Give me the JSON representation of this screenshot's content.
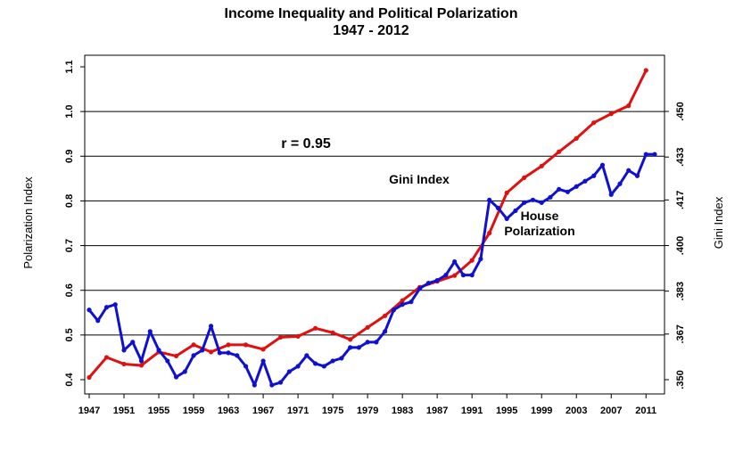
{
  "chart_data": {
    "type": "line",
    "title": "Income Inequality and Political Polarization",
    "subtitle": "1947 - 2012",
    "ylabel": "Polarization Index",
    "y2label": "Gini Index",
    "ylim": [
      0.4,
      1.1
    ],
    "y2lim": [
      0.35,
      0.45
    ],
    "xlim": [
      1947,
      2012
    ],
    "y_ticks": [
      "0.4",
      "0.5",
      "0.6",
      "0.7",
      "0.8",
      "0.9",
      "1.0",
      "1.1"
    ],
    "y2_ticks": [
      ".350",
      ".367",
      ".383",
      ".400",
      ".417",
      ".433",
      ".450"
    ],
    "x_ticks": [
      "1947",
      "1951",
      "1955",
      "1959",
      "1963",
      "1967",
      "1971",
      "1975",
      "1979",
      "1983",
      "1987",
      "1991",
      "1995",
      "1999",
      "2003",
      "2007",
      "2011"
    ],
    "gridlines": "horizontal",
    "annotations": [
      {
        "text": "r = 0.95",
        "color": "#000000"
      },
      {
        "text": "Gini Index",
        "color": "#1010d0"
      },
      {
        "text": "House",
        "color": "#e01010"
      },
      {
        "text": "Polarization",
        "color": "#e01010"
      }
    ],
    "series": [
      {
        "name": "House Polarization",
        "axis": "left",
        "color": "#e01010",
        "x": [
          1947,
          1949,
          1951,
          1953,
          1955,
          1957,
          1959,
          1961,
          1963,
          1965,
          1967,
          1969,
          1971,
          1973,
          1975,
          1977,
          1979,
          1981,
          1983,
          1985,
          1987,
          1989,
          1991,
          1993,
          1995,
          1997,
          1999,
          2001,
          2003,
          2005,
          2007,
          2009,
          2011
        ],
        "values": [
          0.405,
          0.45,
          0.435,
          0.432,
          0.462,
          0.453,
          0.478,
          0.462,
          0.478,
          0.478,
          0.468,
          0.495,
          0.497,
          0.515,
          0.505,
          0.49,
          0.517,
          0.543,
          0.577,
          0.607,
          0.62,
          0.633,
          0.667,
          0.728,
          0.818,
          0.852,
          0.878,
          0.91,
          0.94,
          0.975,
          0.995,
          1.013,
          1.092
        ]
      },
      {
        "name": "Gini Index",
        "axis": "right",
        "color": "#1010d0",
        "x": [
          1947,
          1948,
          1949,
          1950,
          1951,
          1952,
          1953,
          1954,
          1955,
          1956,
          1957,
          1958,
          1959,
          1960,
          1961,
          1962,
          1963,
          1964,
          1965,
          1966,
          1967,
          1968,
          1969,
          1970,
          1971,
          1972,
          1973,
          1974,
          1975,
          1976,
          1977,
          1978,
          1979,
          1980,
          1981,
          1982,
          1983,
          1984,
          1985,
          1986,
          1987,
          1988,
          1989,
          1990,
          1991,
          1992,
          1993,
          1994,
          1995,
          1996,
          1997,
          1998,
          1999,
          2000,
          2001,
          2002,
          2003,
          2004,
          2005,
          2006,
          2007,
          2008,
          2009,
          2010,
          2011,
          2012
        ],
        "values": [
          0.376,
          0.372,
          0.377,
          0.378,
          0.361,
          0.364,
          0.357,
          0.368,
          0.361,
          0.357,
          0.351,
          0.353,
          0.359,
          0.361,
          0.37,
          0.36,
          0.36,
          0.359,
          0.355,
          0.348,
          0.357,
          0.348,
          0.349,
          0.353,
          0.355,
          0.359,
          0.356,
          0.355,
          0.357,
          0.358,
          0.362,
          0.362,
          0.364,
          0.364,
          0.368,
          0.376,
          0.378,
          0.379,
          0.384,
          0.386,
          0.387,
          0.389,
          0.394,
          0.389,
          0.389,
          0.395,
          0.417,
          0.414,
          0.41,
          0.413,
          0.416,
          0.417,
          0.416,
          0.418,
          0.421,
          0.42,
          0.422,
          0.424,
          0.426,
          0.43,
          0.419,
          0.423,
          0.428,
          0.426,
          0.434,
          0.434
        ]
      }
    ]
  }
}
